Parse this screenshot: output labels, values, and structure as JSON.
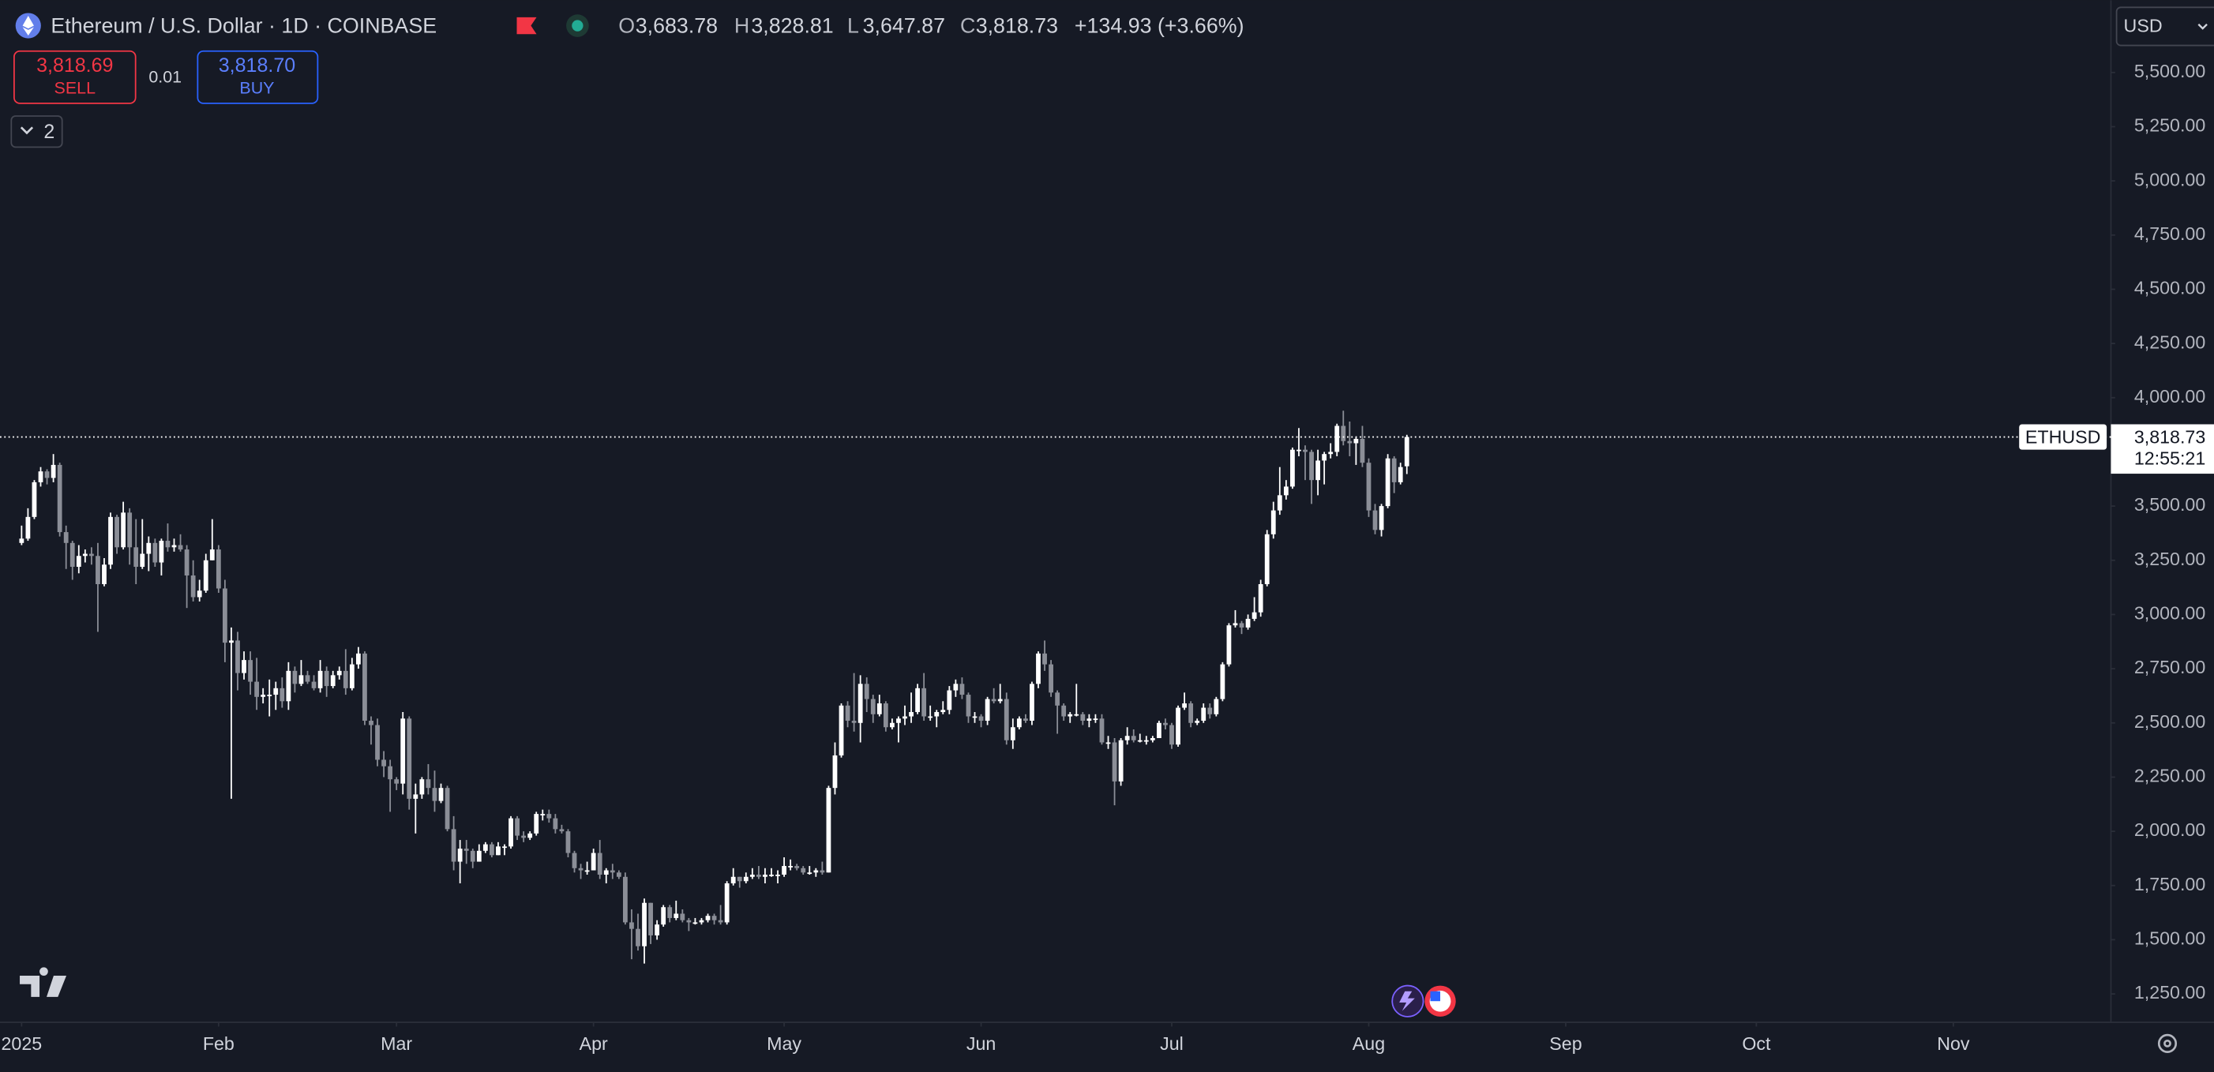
{
  "header": {
    "symbol": "Ethereum / U.S. Dollar · 1D · COINBASE",
    "o_label": "O",
    "open": "3,683.78",
    "h_label": "H",
    "high": "3,828.81",
    "l_label": "L",
    "low": "3,647.87",
    "c_label": "C",
    "close": "3,818.73",
    "change": "+134.93 (+3.66%)"
  },
  "trade": {
    "sell_price": "3,818.69",
    "sell": "SELL",
    "spread": "0.01",
    "buy_price": "3,818.70",
    "buy": "BUY"
  },
  "indicators_count": "2",
  "currency": "USD",
  "price_label": {
    "symbol": "ETHUSD",
    "price": "3,818.73",
    "countdown": "12:55:21"
  },
  "chart_data": {
    "type": "candlestick",
    "open": [
      3330,
      3350,
      3450,
      3610,
      3660,
      3630,
      3690,
      3380,
      3330,
      3220,
      3270,
      3280,
      3270,
      3140,
      3230,
      3450,
      3310,
      3470,
      3310,
      3220,
      3280,
      3330,
      3240,
      3340,
      3310,
      3320,
      3300,
      3180,
      3080,
      3110,
      3250,
      3300,
      3120,
      2870,
      2880,
      2730,
      2790,
      2690,
      2620,
      2630,
      2630,
      2660,
      2600,
      2740,
      2680,
      2720,
      2690,
      2660,
      2740,
      2670,
      2720,
      2740,
      2660,
      2770,
      2820,
      2510,
      2490,
      2330,
      2300,
      2240,
      2220,
      2520,
      2150,
      2170,
      2240,
      2200,
      2140,
      2200,
      2010,
      1860,
      1920,
      1910,
      1860,
      1910,
      1940,
      1890,
      1930,
      1930,
      2060,
      1980,
      1970,
      1990,
      2080,
      2080,
      2060,
      2010,
      2000,
      1900,
      1830,
      1820,
      1820,
      1900,
      1800,
      1820,
      1810,
      1790,
      1580,
      1550,
      1470,
      1670,
      1520,
      1570,
      1650,
      1600,
      1620,
      1590,
      1580,
      1580,
      1590,
      1610,
      1590,
      1580,
      1760,
      1790,
      1770,
      1790,
      1800,
      1790,
      1800,
      1800,
      1800,
      1840,
      1840,
      1830,
      1810,
      1810,
      1820,
      1810,
      2200,
      2350,
      2580,
      2510,
      2500,
      2680,
      2610,
      2540,
      2590,
      2480,
      2500,
      2520,
      2530,
      2550,
      2660,
      2530,
      2530,
      2550,
      2560,
      2650,
      2680,
      2630,
      2530,
      2530,
      2510,
      2610,
      2600,
      2610,
      2420,
      2480,
      2520,
      2510,
      2680,
      2820,
      2770,
      2640,
      2580,
      2530,
      2540,
      2540,
      2510,
      2520,
      2520,
      2410,
      2410,
      2230,
      2420,
      2440,
      2420,
      2420,
      2420,
      2430,
      2500,
      2490,
      2400,
      2570,
      2590,
      2500,
      2510,
      2570,
      2540,
      2610,
      2770,
      2950,
      2960,
      2940,
      2980,
      3010,
      3140,
      3370,
      3480,
      3550,
      3590,
      3760,
      3760,
      3750,
      3620,
      3710,
      3740,
      3750,
      3870,
      3800,
      3790,
      3810,
      3700,
      3480,
      3390,
      3500,
      3720,
      3610,
      3683.78
    ],
    "high": [
      3410,
      3490,
      3620,
      3680,
      3670,
      3740,
      3700,
      3410,
      3340,
      3320,
      3300,
      3310,
      3330,
      3260,
      3470,
      3460,
      3520,
      3490,
      3440,
      3440,
      3360,
      3350,
      3350,
      3420,
      3350,
      3370,
      3320,
      3250,
      3160,
      3280,
      3440,
      3320,
      3160,
      2940,
      2920,
      2830,
      2830,
      2800,
      2660,
      2700,
      2690,
      2710,
      2780,
      2760,
      2790,
      2740,
      2720,
      2790,
      2760,
      2740,
      2760,
      2840,
      2800,
      2850,
      2830,
      2530,
      2520,
      2370,
      2330,
      2250,
      2550,
      2530,
      2220,
      2250,
      2310,
      2280,
      2220,
      2210,
      2070,
      1960,
      1960,
      1920,
      1940,
      1950,
      1950,
      1950,
      1940,
      2070,
      2070,
      2000,
      2000,
      2090,
      2100,
      2100,
      2080,
      2030,
      2010,
      1910,
      1850,
      1860,
      1920,
      1960,
      1830,
      1850,
      1820,
      1810,
      1640,
      1620,
      1690,
      1670,
      1590,
      1660,
      1660,
      1680,
      1640,
      1600,
      1600,
      1600,
      1620,
      1620,
      1660,
      1770,
      1830,
      1790,
      1810,
      1830,
      1840,
      1830,
      1830,
      1820,
      1880,
      1870,
      1850,
      1840,
      1840,
      1830,
      1860,
      2210,
      2410,
      2590,
      2600,
      2730,
      2720,
      2710,
      2630,
      2630,
      2600,
      2520,
      2530,
      2580,
      2640,
      2680,
      2730,
      2580,
      2560,
      2600,
      2670,
      2700,
      2710,
      2640,
      2550,
      2540,
      2620,
      2660,
      2680,
      2640,
      2520,
      2530,
      2540,
      2690,
      2830,
      2880,
      2790,
      2650,
      2590,
      2550,
      2680,
      2550,
      2540,
      2540,
      2540,
      2440,
      2430,
      2430,
      2480,
      2470,
      2450,
      2440,
      2440,
      2510,
      2520,
      2500,
      2580,
      2640,
      2600,
      2520,
      2590,
      2590,
      2620,
      2780,
      2960,
      3020,
      2970,
      3000,
      3080,
      3160,
      3390,
      3520,
      3680,
      3620,
      3770,
      3860,
      3780,
      3760,
      3760,
      3750,
      3790,
      3880,
      3940,
      3890,
      3820,
      3870,
      3720,
      3510,
      3510,
      3740,
      3730,
      3700,
      3828.81
    ],
    "low": [
      3320,
      3340,
      3440,
      3590,
      3600,
      3610,
      3360,
      3210,
      3160,
      3190,
      3240,
      3230,
      2920,
      3130,
      3210,
      3280,
      3300,
      3230,
      3140,
      3210,
      3200,
      3220,
      3180,
      3290,
      3290,
      3290,
      3030,
      3060,
      3060,
      3100,
      3250,
      3100,
      2780,
      2150,
      2650,
      2700,
      2630,
      2560,
      2590,
      2530,
      2560,
      2570,
      2560,
      2640,
      2670,
      2680,
      2650,
      2640,
      2620,
      2660,
      2700,
      2630,
      2650,
      2750,
      2490,
      2400,
      2300,
      2250,
      2090,
      2190,
      2170,
      2100,
      1990,
      2150,
      2170,
      2090,
      2130,
      2000,
      1820,
      1760,
      1850,
      1830,
      1860,
      1900,
      1880,
      1890,
      1890,
      1920,
      1960,
      1950,
      1960,
      1980,
      2050,
      2040,
      1990,
      1990,
      1880,
      1810,
      1780,
      1800,
      1820,
      1780,
      1760,
      1780,
      1780,
      1570,
      1410,
      1450,
      1390,
      1480,
      1500,
      1560,
      1580,
      1590,
      1580,
      1540,
      1570,
      1570,
      1580,
      1570,
      1570,
      1570,
      1750,
      1740,
      1760,
      1780,
      1780,
      1760,
      1790,
      1760,
      1790,
      1820,
      1820,
      1800,
      1800,
      1790,
      1800,
      1810,
      2170,
      2340,
      2480,
      2460,
      2410,
      2550,
      2500,
      2530,
      2460,
      2470,
      2410,
      2490,
      2500,
      2540,
      2510,
      2510,
      2480,
      2540,
      2540,
      2620,
      2610,
      2500,
      2500,
      2480,
      2490,
      2590,
      2590,
      2400,
      2380,
      2470,
      2500,
      2490,
      2660,
      2740,
      2620,
      2450,
      2510,
      2500,
      2530,
      2490,
      2480,
      2500,
      2400,
      2380,
      2120,
      2210,
      2400,
      2410,
      2410,
      2400,
      2410,
      2430,
      2470,
      2380,
      2390,
      2560,
      2480,
      2490,
      2500,
      2520,
      2530,
      2600,
      2760,
      2940,
      2910,
      2930,
      2970,
      2990,
      3130,
      3350,
      3460,
      3530,
      3580,
      3730,
      3620,
      3510,
      3550,
      3600,
      3720,
      3730,
      3780,
      3730,
      3690,
      3680,
      3450,
      3370,
      3360,
      3490,
      3560,
      3600,
      3647.87
    ],
    "close": [
      3350,
      3450,
      3610,
      3660,
      3630,
      3690,
      3380,
      3330,
      3220,
      3270,
      3280,
      3270,
      3140,
      3230,
      3450,
      3310,
      3470,
      3310,
      3220,
      3280,
      3330,
      3240,
      3340,
      3310,
      3320,
      3300,
      3180,
      3080,
      3110,
      3250,
      3300,
      3120,
      2870,
      2880,
      2730,
      2790,
      2690,
      2620,
      2630,
      2630,
      2660,
      2600,
      2740,
      2680,
      2720,
      2690,
      2660,
      2740,
      2670,
      2720,
      2740,
      2660,
      2770,
      2820,
      2510,
      2490,
      2330,
      2300,
      2240,
      2220,
      2520,
      2150,
      2170,
      2240,
      2200,
      2140,
      2200,
      2010,
      1860,
      1920,
      1910,
      1860,
      1910,
      1940,
      1890,
      1930,
      1930,
      2060,
      1980,
      1970,
      1990,
      2080,
      2080,
      2060,
      2010,
      2000,
      1900,
      1830,
      1820,
      1820,
      1900,
      1800,
      1820,
      1810,
      1790,
      1580,
      1550,
      1470,
      1670,
      1520,
      1570,
      1650,
      1600,
      1620,
      1590,
      1580,
      1580,
      1590,
      1610,
      1590,
      1580,
      1760,
      1790,
      1770,
      1790,
      1800,
      1790,
      1800,
      1800,
      1800,
      1840,
      1840,
      1830,
      1810,
      1810,
      1820,
      1810,
      2200,
      2350,
      2580,
      2510,
      2500,
      2680,
      2610,
      2540,
      2590,
      2480,
      2500,
      2520,
      2530,
      2550,
      2660,
      2530,
      2530,
      2550,
      2560,
      2650,
      2680,
      2630,
      2530,
      2530,
      2510,
      2610,
      2600,
      2610,
      2420,
      2480,
      2520,
      2510,
      2680,
      2820,
      2770,
      2640,
      2580,
      2530,
      2540,
      2540,
      2510,
      2520,
      2520,
      2410,
      2410,
      2230,
      2420,
      2440,
      2420,
      2420,
      2420,
      2430,
      2500,
      2490,
      2400,
      2570,
      2590,
      2500,
      2510,
      2570,
      2540,
      2610,
      2770,
      2950,
      2960,
      2940,
      2980,
      3010,
      3140,
      3370,
      3480,
      3550,
      3590,
      3760,
      3760,
      3750,
      3620,
      3710,
      3740,
      3750,
      3870,
      3800,
      3790,
      3810,
      3700,
      3480,
      3390,
      3500,
      3720,
      3610,
      3680,
      3818.73
    ],
    "up_color": "#ffffff",
    "down_color": "#8b8e97",
    "ylim": [
      1119,
      5833
    ],
    "yticks": [
      {
        "value": 1250,
        "label": "1,250.00"
      },
      {
        "value": 1500,
        "label": "1,500.00"
      },
      {
        "value": 1750,
        "label": "1,750.00"
      },
      {
        "value": 2000,
        "label": "2,000.00"
      },
      {
        "value": 2250,
        "label": "2,250.00"
      },
      {
        "value": 2500,
        "label": "2,500.00"
      },
      {
        "value": 2750,
        "label": "2,750.00"
      },
      {
        "value": 3000,
        "label": "3,000.00"
      },
      {
        "value": 3250,
        "label": "3,250.00"
      },
      {
        "value": 3500,
        "label": "3,500.00"
      },
      {
        "value": 3750,
        "label": "3,750.00"
      },
      {
        "value": 4000,
        "label": "4,000.00"
      },
      {
        "value": 4250,
        "label": "4,250.00"
      },
      {
        "value": 4500,
        "label": "4,500.00"
      },
      {
        "value": 4750,
        "label": "4,750.00"
      },
      {
        "value": 5000,
        "label": "5,000.00"
      },
      {
        "value": 5250,
        "label": "5,250.00"
      },
      {
        "value": 5500,
        "label": "5,500.00"
      }
    ],
    "xlim": [
      -3.4,
      328.8
    ],
    "xticks": [
      {
        "value": 0,
        "label": "2025"
      },
      {
        "value": 31,
        "label": "Feb"
      },
      {
        "value": 59,
        "label": "Mar"
      },
      {
        "value": 90,
        "label": "Apr"
      },
      {
        "value": 120,
        "label": "May"
      },
      {
        "value": 151,
        "label": "Jun"
      },
      {
        "value": 181,
        "label": "Jul"
      },
      {
        "value": 212,
        "label": "Aug"
      },
      {
        "value": 243,
        "label": "Sep"
      },
      {
        "value": 273,
        "label": "Oct"
      },
      {
        "value": 304,
        "label": "Nov"
      }
    ],
    "grid": false
  }
}
